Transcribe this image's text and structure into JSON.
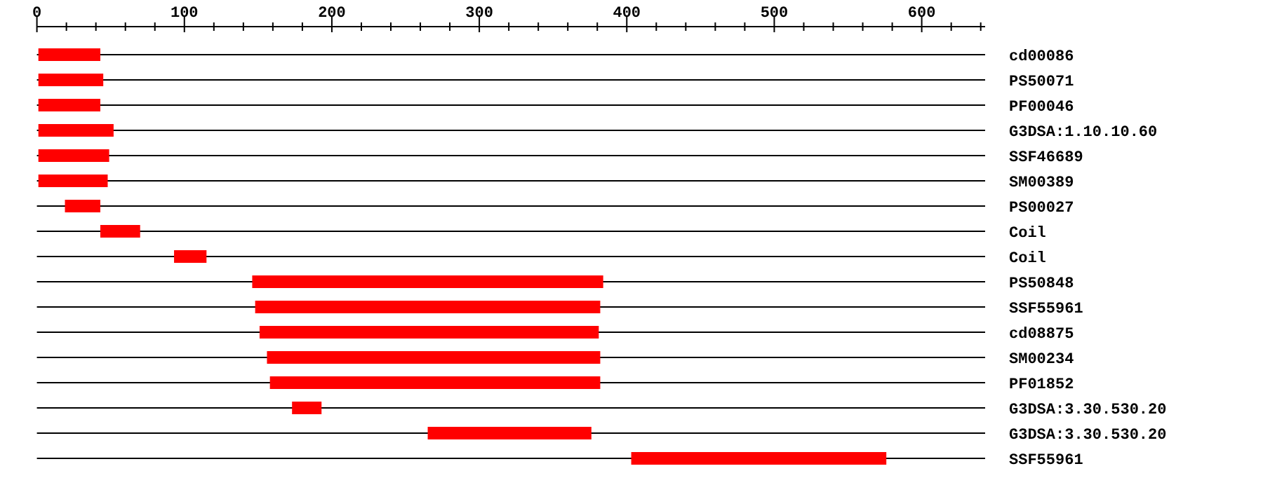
{
  "chart_data": {
    "type": "bar",
    "orientation": "horizontal",
    "categories": [
      "cd00086",
      "PS50071",
      "PF00046",
      "G3DSA:1.10.10.60",
      "SSF46689",
      "SM00389",
      "PS00027",
      "Coil",
      "Coil",
      "PS50848",
      "SSF55961",
      "cd08875",
      "SM00234",
      "PF01852",
      "G3DSA:3.30.530.20",
      "G3DSA:3.30.530.20",
      "SSF55961"
    ],
    "base": [
      1,
      1,
      1,
      1,
      1,
      1,
      19,
      43,
      93,
      146,
      148,
      151,
      156,
      158,
      173,
      265,
      403
    ],
    "values": [
      42,
      44,
      42,
      51,
      48,
      47,
      24,
      27,
      22,
      238,
      234,
      230,
      226,
      224,
      20,
      111,
      173
    ],
    "color": "#ff0000",
    "xlim": [
      0,
      643
    ],
    "xticks": [
      0,
      {
        "value": 20,
        "label": null
      },
      {
        "value": 40,
        "label": null
      },
      {
        "value": 60,
        "label": null
      },
      {
        "value": 80,
        "label": null
      },
      100,
      {
        "value": 120,
        "label": null
      },
      {
        "value": 140,
        "label": null
      },
      {
        "value": 160,
        "label": null
      },
      {
        "value": 180,
        "label": null
      },
      200,
      {
        "value": 220,
        "label": null
      },
      {
        "value": 240,
        "label": null
      },
      {
        "value": 260,
        "label": null
      },
      {
        "value": 280,
        "label": null
      },
      300,
      {
        "value": 320,
        "label": null
      },
      {
        "value": 340,
        "label": null
      },
      {
        "value": 360,
        "label": null
      },
      {
        "value": 380,
        "label": null
      },
      400,
      {
        "value": 420,
        "label": null
      },
      {
        "value": 440,
        "label": null
      },
      {
        "value": 460,
        "label": null
      },
      {
        "value": 480,
        "label": null
      },
      500,
      {
        "value": 520,
        "label": null
      },
      {
        "value": 540,
        "label": null
      },
      {
        "value": 560,
        "label": null
      },
      {
        "value": 580,
        "label": null
      },
      600,
      {
        "value": 620,
        "label": null
      },
      {
        "value": 640,
        "label": null
      }
    ],
    "grid": "y"
  }
}
